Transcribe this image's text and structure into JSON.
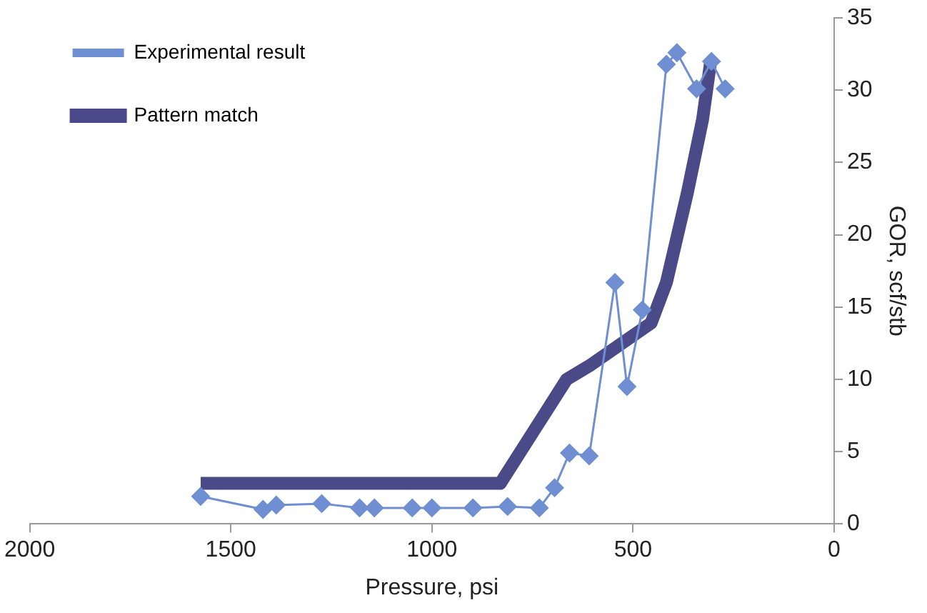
{
  "chart_data": {
    "type": "line",
    "xlabel": "Pressure, psi",
    "ylabel": "GOR, scf/stb",
    "xlim": [
      2000,
      0
    ],
    "xticks": [
      2000,
      1500,
      1000,
      500,
      0
    ],
    "ylim": [
      0,
      35
    ],
    "yticks": [
      0,
      5,
      10,
      15,
      20,
      25,
      30,
      35
    ],
    "grid": false,
    "legend": "top left",
    "series": [
      {
        "name": "Experimental result",
        "color": "#6f8fd2",
        "marker": "diamond",
        "x": [
          1575,
          1420,
          1387,
          1274,
          1180,
          1143,
          1049,
          1000,
          898,
          812,
          733,
          695,
          658,
          609,
          545,
          515,
          477,
          417,
          391,
          342,
          305,
          271
        ],
        "values": [
          1.9,
          1.0,
          1.3,
          1.4,
          1.1,
          1.1,
          1.1,
          1.1,
          1.1,
          1.2,
          1.1,
          2.5,
          4.9,
          4.7,
          16.7,
          9.5,
          14.8,
          31.8,
          32.6,
          30.1,
          32.0,
          30.1
        ]
      },
      {
        "name": "Pattern match",
        "color": "#4a4a88",
        "marker": "none",
        "x": [
          1575,
          1400,
          1200,
          1000,
          830,
          665,
          605,
          455,
          417,
          365,
          327,
          308
        ],
        "values": [
          2.8,
          2.8,
          2.8,
          2.8,
          2.8,
          10,
          11,
          13.9,
          16.7,
          22.9,
          28,
          31.8
        ]
      }
    ]
  }
}
